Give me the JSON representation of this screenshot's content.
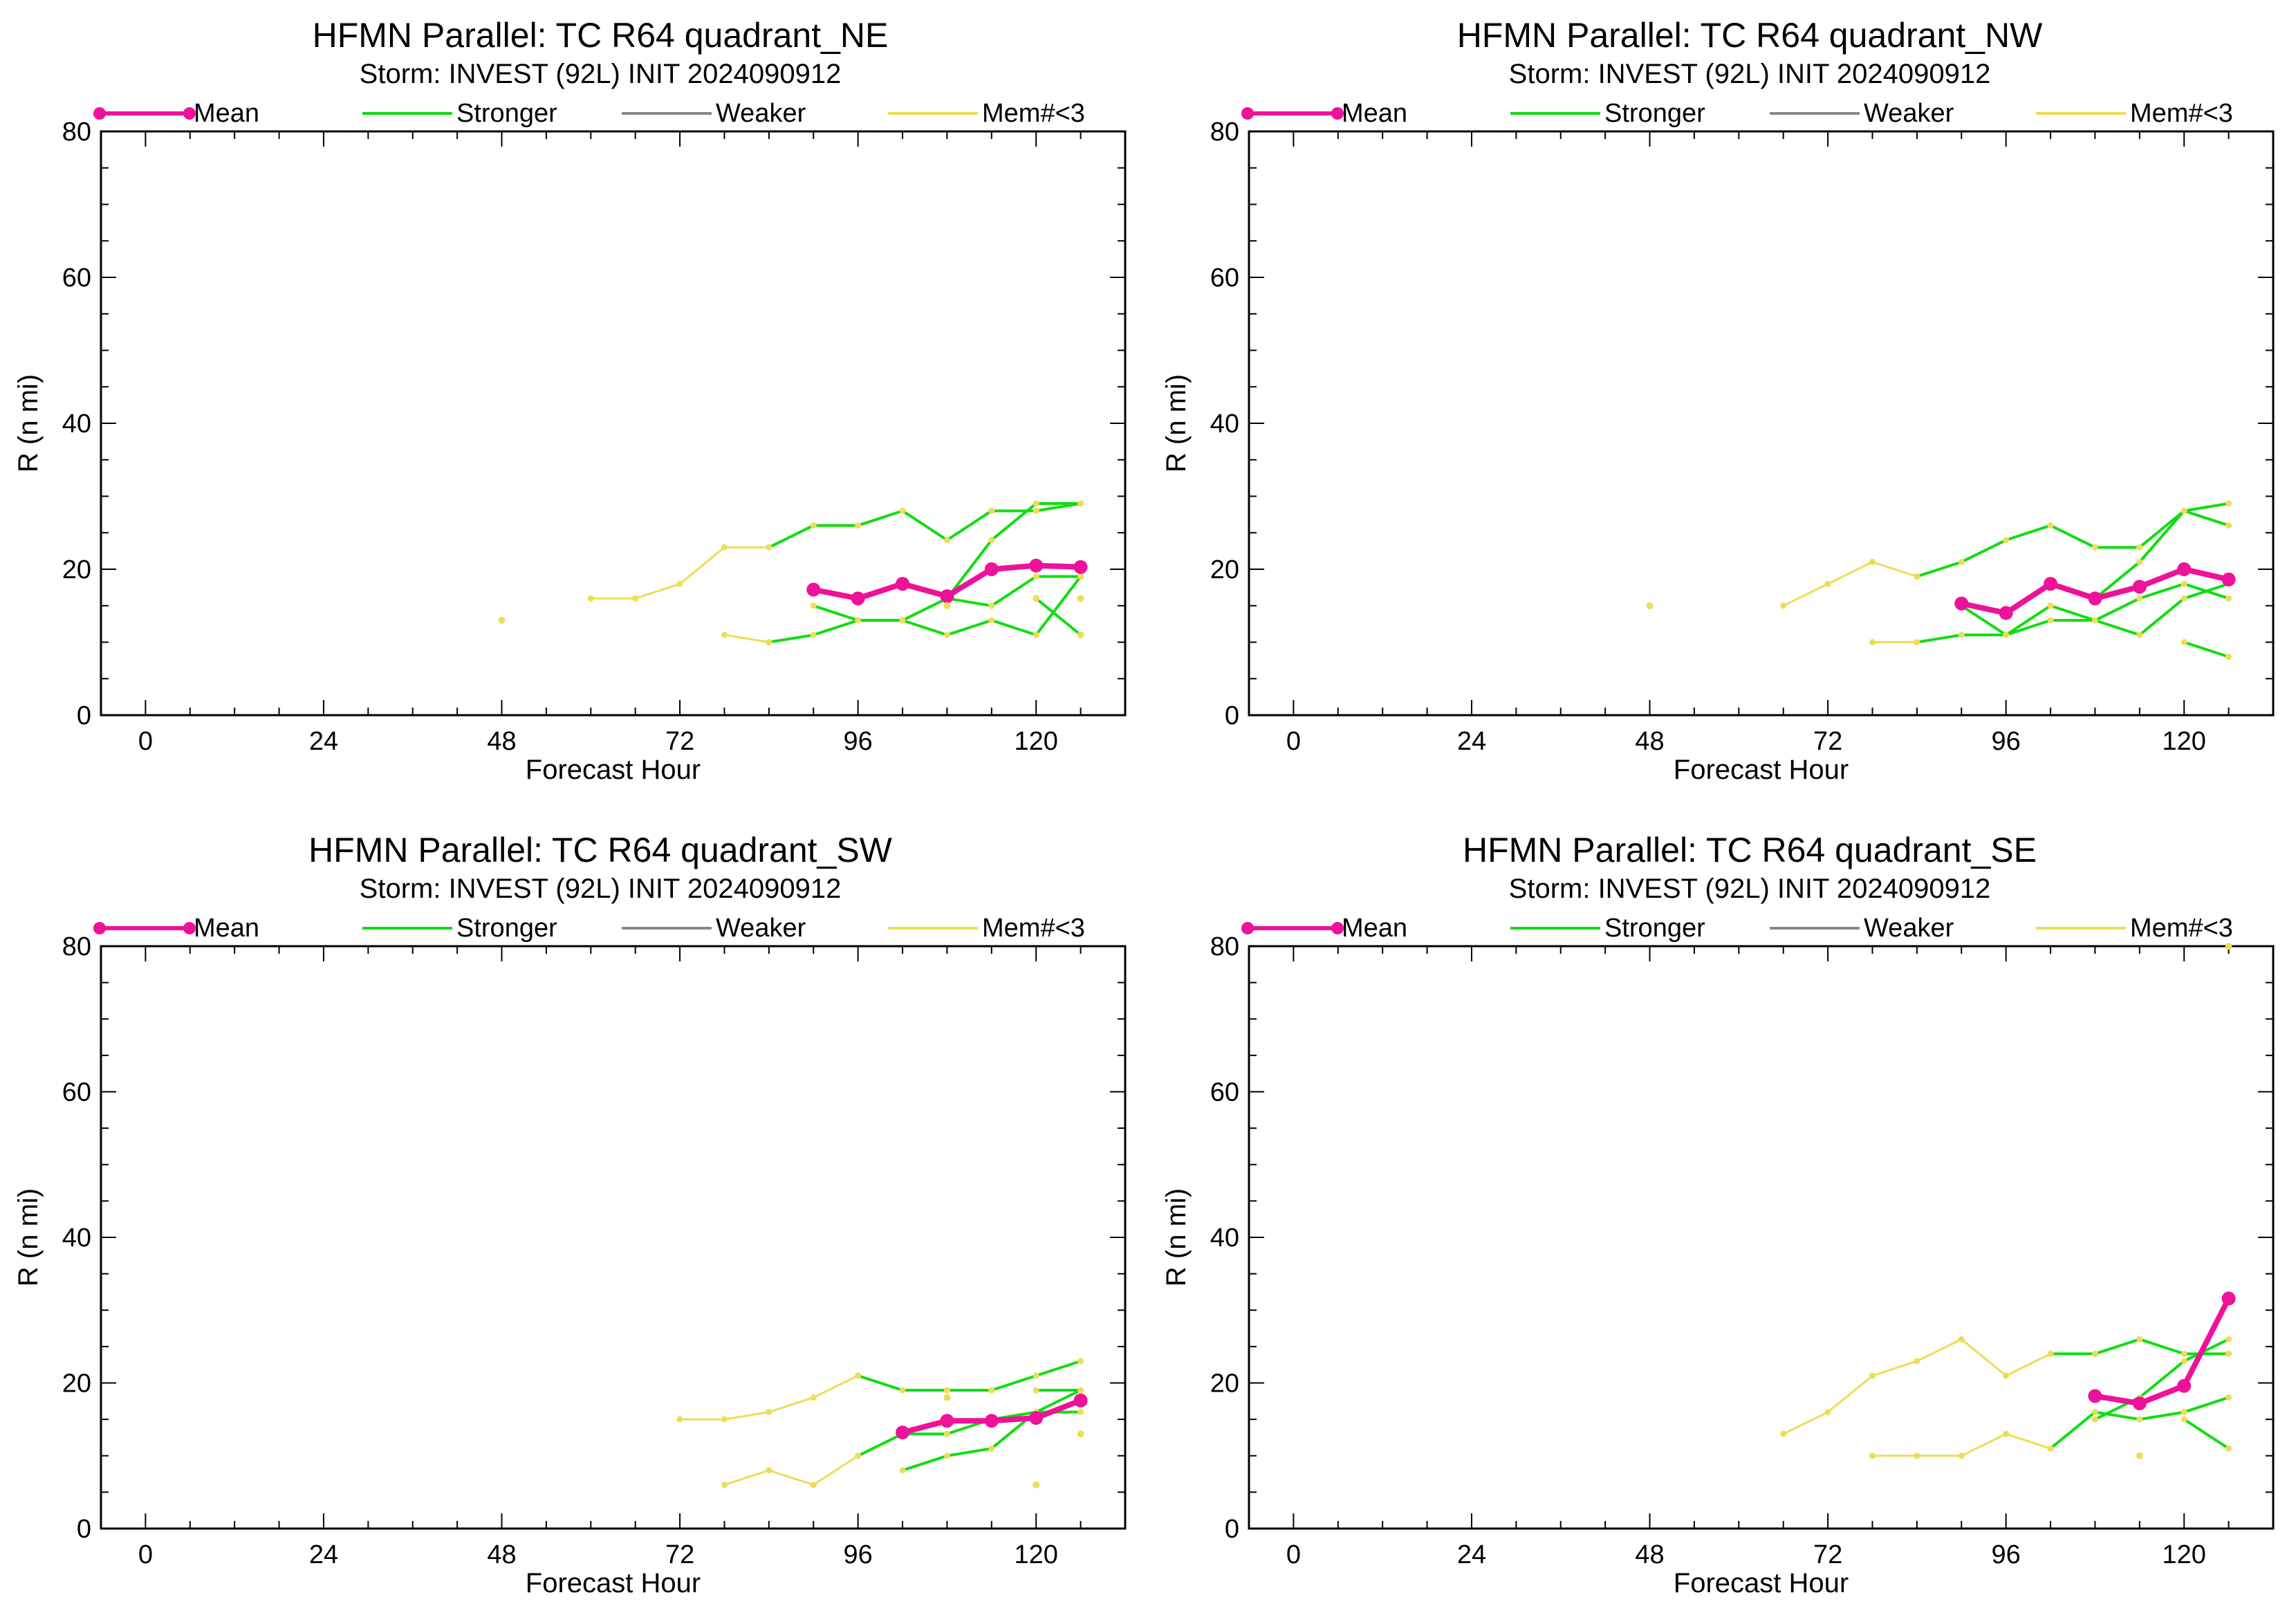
{
  "chart_data": [
    {
      "type": "line",
      "title": "HFMN Parallel: TC  R64 quadrant_NE",
      "subtitle": "Storm: INVEST (92L) INIT 2024090912",
      "xlabel": "Forecast Hour",
      "ylabel": "R (n mi)",
      "xlim": [
        -6,
        132
      ],
      "ylim": [
        0,
        80
      ],
      "xticks": [
        0,
        24,
        48,
        72,
        96,
        120
      ],
      "yticks": [
        0,
        20,
        40,
        60,
        80
      ],
      "legend": [
        "Mean",
        "Stronger",
        "Weaker",
        "Mem#<3"
      ],
      "series": [
        {
          "role": "mem",
          "x": [
            72,
            78,
            84,
            90,
            96,
            102,
            108,
            114,
            120,
            126
          ],
          "y": [
            18,
            23,
            23,
            26,
            26,
            28,
            24,
            28,
            28,
            29
          ]
        },
        {
          "role": "mem",
          "x": [
            60,
            66,
            72
          ],
          "y": [
            16,
            16,
            18
          ]
        },
        {
          "role": "mem",
          "x": [
            78,
            84
          ],
          "y": [
            11,
            10
          ]
        },
        {
          "role": "stronger",
          "x": [
            84,
            90,
            96,
            102,
            108,
            114,
            120,
            126
          ],
          "y": [
            23,
            26,
            26,
            28,
            24,
            28,
            28,
            29
          ]
        },
        {
          "role": "stronger",
          "x": [
            84,
            90,
            96,
            102,
            108,
            114,
            120,
            126
          ],
          "y": [
            10,
            11,
            13,
            13,
            11,
            13,
            11,
            19
          ]
        },
        {
          "role": "stronger",
          "x": [
            90,
            96,
            102,
            108,
            114,
            120,
            126
          ],
          "y": [
            15,
            13,
            13,
            16,
            15,
            19,
            19
          ]
        },
        {
          "role": "stronger",
          "x": [
            108,
            114,
            120,
            126
          ],
          "y": [
            16,
            24,
            29,
            29
          ]
        },
        {
          "role": "stronger",
          "x": [
            120,
            126
          ],
          "y": [
            16,
            11
          ]
        },
        {
          "role": "mean",
          "x": [
            90,
            96,
            102,
            108,
            114,
            120,
            126
          ],
          "y": [
            17.2,
            16,
            18,
            16.3,
            20,
            20.5,
            20.3
          ]
        }
      ],
      "points_mem": [
        {
          "x": 48,
          "y": 13
        },
        {
          "x": 108,
          "y": 15
        },
        {
          "x": 126,
          "y": 16
        },
        {
          "x": 126,
          "y": 11
        },
        {
          "x": 120,
          "y": 16
        }
      ]
    },
    {
      "type": "line",
      "title": "HFMN Parallel: TC  R64 quadrant_NW",
      "subtitle": "Storm: INVEST (92L) INIT 2024090912",
      "xlabel": "Forecast Hour",
      "ylabel": "R (n mi)",
      "xlim": [
        -6,
        132
      ],
      "ylim": [
        0,
        80
      ],
      "xticks": [
        0,
        24,
        48,
        72,
        96,
        120
      ],
      "yticks": [
        0,
        20,
        40,
        60,
        80
      ],
      "legend": [
        "Mean",
        "Stronger",
        "Weaker",
        "Mem#<3"
      ],
      "series": [
        {
          "role": "mem",
          "x": [
            66,
            72,
            78,
            84
          ],
          "y": [
            15,
            18,
            21,
            19
          ]
        },
        {
          "role": "mem",
          "x": [
            78,
            84
          ],
          "y": [
            10,
            10
          ]
        },
        {
          "role": "stronger",
          "x": [
            84,
            90,
            96,
            102,
            108,
            114,
            120,
            126
          ],
          "y": [
            19,
            21,
            24,
            26,
            23,
            23,
            28,
            29
          ]
        },
        {
          "role": "stronger",
          "x": [
            84,
            90,
            96,
            102,
            108,
            114,
            120,
            126
          ],
          "y": [
            10,
            11,
            11,
            13,
            13,
            11,
            16,
            18
          ]
        },
        {
          "role": "stronger",
          "x": [
            90,
            96,
            102,
            108,
            114,
            120,
            126
          ],
          "y": [
            15,
            11,
            15,
            13,
            16,
            18,
            16
          ]
        },
        {
          "role": "stronger",
          "x": [
            108,
            114,
            120,
            126
          ],
          "y": [
            16,
            21,
            28,
            26
          ]
        },
        {
          "role": "stronger",
          "x": [
            120,
            126
          ],
          "y": [
            10,
            8
          ]
        },
        {
          "role": "mean",
          "x": [
            90,
            96,
            102,
            108,
            114,
            120,
            126
          ],
          "y": [
            15.3,
            14,
            18,
            16,
            17.6,
            20,
            18.6
          ]
        }
      ],
      "points_mem": [
        {
          "x": 48,
          "y": 15
        }
      ]
    },
    {
      "type": "line",
      "title": "HFMN Parallel: TC  R64 quadrant_SW",
      "subtitle": "Storm: INVEST (92L) INIT 2024090912",
      "xlabel": "Forecast Hour",
      "ylabel": "R (n mi)",
      "xlim": [
        -6,
        132
      ],
      "ylim": [
        0,
        80
      ],
      "xticks": [
        0,
        24,
        48,
        72,
        96,
        120
      ],
      "yticks": [
        0,
        20,
        40,
        60,
        80
      ],
      "legend": [
        "Mean",
        "Stronger",
        "Weaker",
        "Mem#<3"
      ],
      "series": [
        {
          "role": "mem",
          "x": [
            72,
            78,
            84,
            90,
            96
          ],
          "y": [
            15,
            15,
            16,
            18,
            21
          ]
        },
        {
          "role": "mem",
          "x": [
            78,
            84,
            90,
            96
          ],
          "y": [
            6,
            8,
            6,
            10
          ]
        },
        {
          "role": "stronger",
          "x": [
            96,
            102,
            108,
            114,
            120,
            126
          ],
          "y": [
            21,
            19,
            19,
            19,
            21,
            23
          ]
        },
        {
          "role": "stronger",
          "x": [
            96,
            102,
            108,
            114,
            120,
            126
          ],
          "y": [
            10,
            13,
            13,
            15,
            16,
            16
          ]
        },
        {
          "role": "stronger",
          "x": [
            102,
            108,
            114,
            120,
            126
          ],
          "y": [
            8,
            10,
            11,
            16,
            19
          ]
        },
        {
          "role": "stronger",
          "x": [
            120,
            126
          ],
          "y": [
            19,
            19
          ]
        },
        {
          "role": "mean",
          "x": [
            102,
            108,
            114,
            120,
            126
          ],
          "y": [
            13.2,
            14.8,
            14.8,
            15.2,
            17.6
          ]
        }
      ],
      "points_mem": [
        {
          "x": 108,
          "y": 18
        },
        {
          "x": 120,
          "y": 6
        },
        {
          "x": 126,
          "y": 13
        }
      ]
    },
    {
      "type": "line",
      "title": "HFMN Parallel: TC  R64 quadrant_SE",
      "subtitle": "Storm: INVEST (92L) INIT 2024090912",
      "xlabel": "Forecast Hour",
      "ylabel": "R (n mi)",
      "xlim": [
        -6,
        132
      ],
      "ylim": [
        0,
        80
      ],
      "xticks": [
        0,
        24,
        48,
        72,
        96,
        120
      ],
      "yticks": [
        0,
        20,
        40,
        60,
        80
      ],
      "legend": [
        "Mean",
        "Stronger",
        "Weaker",
        "Mem#<3"
      ],
      "series": [
        {
          "role": "mem",
          "x": [
            66,
            72,
            78,
            84,
            90,
            96,
            102
          ],
          "y": [
            13,
            16,
            21,
            23,
            26,
            21,
            24
          ]
        },
        {
          "role": "mem",
          "x": [
            78,
            84,
            90,
            96,
            102
          ],
          "y": [
            10,
            10,
            10,
            13,
            11
          ]
        },
        {
          "role": "stronger",
          "x": [
            102,
            108,
            114,
            120,
            126
          ],
          "y": [
            24,
            24,
            26,
            24,
            24
          ]
        },
        {
          "role": "stronger",
          "x": [
            102,
            108,
            114,
            120,
            126
          ],
          "y": [
            11,
            16,
            15,
            16,
            18
          ]
        },
        {
          "role": "stronger",
          "x": [
            108,
            114,
            120,
            126
          ],
          "y": [
            15,
            18,
            23,
            26
          ]
        },
        {
          "role": "stronger",
          "x": [
            120,
            126
          ],
          "y": [
            15,
            11
          ]
        },
        {
          "role": "mean",
          "x": [
            108,
            114,
            120,
            126
          ],
          "y": [
            18.2,
            17.2,
            19.6,
            31.6
          ]
        }
      ],
      "points_mem": [
        {
          "x": 114,
          "y": 10
        },
        {
          "x": 126,
          "y": 80
        }
      ]
    }
  ],
  "colors": {
    "mean": "#ee1199",
    "stronger": "#11dd11",
    "weaker": "#888888",
    "mem": "#eedd55",
    "axis": "#000000"
  }
}
